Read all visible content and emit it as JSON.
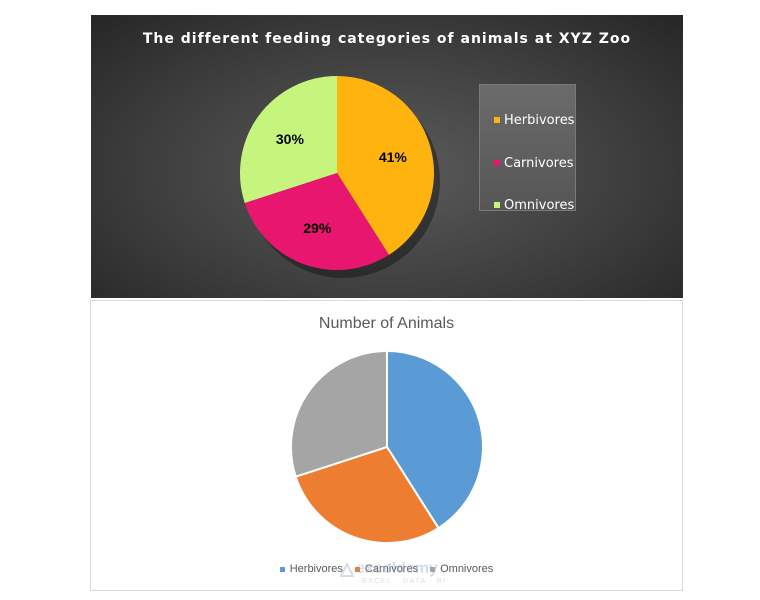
{
  "chart_data": [
    {
      "type": "pie",
      "title": "The different feeding categories of animals at XYZ Zoo",
      "categories": [
        "Herbivores",
        "Carnivores",
        "Omnivores"
      ],
      "values": [
        41,
        29,
        30
      ],
      "data_labels": [
        "41%",
        "29%",
        "30%"
      ],
      "colors": [
        "#FFB30F",
        "#E8166E",
        "#C5F57C"
      ],
      "legend_position": "right",
      "background": "dark"
    },
    {
      "type": "pie",
      "title": "Number of Animals",
      "categories": [
        "Herbivores",
        "Carnivores",
        "Omnivores"
      ],
      "values": [
        41,
        29,
        30
      ],
      "colors": [
        "#5B9BD5",
        "#ED7D31",
        "#A5A5A5"
      ],
      "legend_position": "bottom"
    }
  ],
  "watermark": {
    "name": "exceldemy",
    "tagline": "EXCEL · DATA · BI"
  }
}
